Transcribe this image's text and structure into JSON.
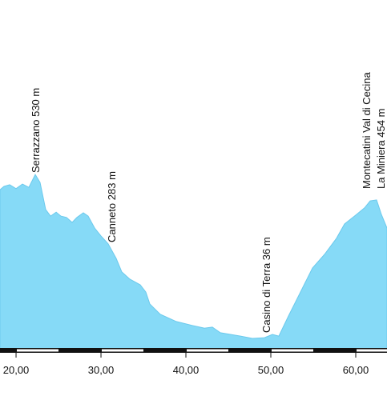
{
  "chart_data": {
    "type": "area",
    "color": "#86daf7",
    "annotations": [
      "Serrazzano 530 m",
      "Canneto 283 m",
      "Casino di Terra 36 m",
      "Montecatini Val di Cecina",
      "La Miniera 454 m"
    ],
    "x": [
      18.11,
      18.58,
      19.25,
      20,
      20.75,
      21.51,
      22.26,
      22.83,
      23.49,
      24.06,
      24.72,
      25.28,
      25.94,
      26.6,
      27.17,
      27.92,
      28.49,
      29.25,
      30,
      30.85,
      31.79,
      32.45,
      33.4,
      34.62,
      35.28,
      35.75,
      36.98,
      38.87,
      40.75,
      42.17,
      43.11,
      44.06,
      46.42,
      47.83,
      49.25,
      50.19,
      50.94,
      52.08,
      53.49,
      54.91,
      56.32,
      57.74,
      58.68,
      60.09,
      61.04,
      61.7,
      62.45,
      63.02,
      63.68
    ],
    "values": [
      484,
      494,
      499,
      487,
      501,
      491,
      530,
      506,
      424,
      404,
      416,
      404,
      400,
      385,
      400,
      414,
      404,
      368,
      344,
      320,
      276,
      235,
      213,
      196,
      174,
      138,
      107,
      85,
      73,
      65,
      68,
      51,
      41,
      34,
      36,
      46,
      41,
      102,
      174,
      247,
      288,
      337,
      380,
      409,
      429,
      450,
      453,
      409,
      368
    ],
    "xlim": [
      18.11,
      63.68
    ],
    "ylim": [
      0,
      1058
    ],
    "xticks": [
      {
        "value": 20,
        "label": "20,00"
      },
      {
        "value": 30,
        "label": "30,00"
      },
      {
        "value": 40,
        "label": "40,00"
      },
      {
        "value": 50,
        "label": "50,00"
      },
      {
        "value": 60,
        "label": "60,00"
      }
    ]
  }
}
